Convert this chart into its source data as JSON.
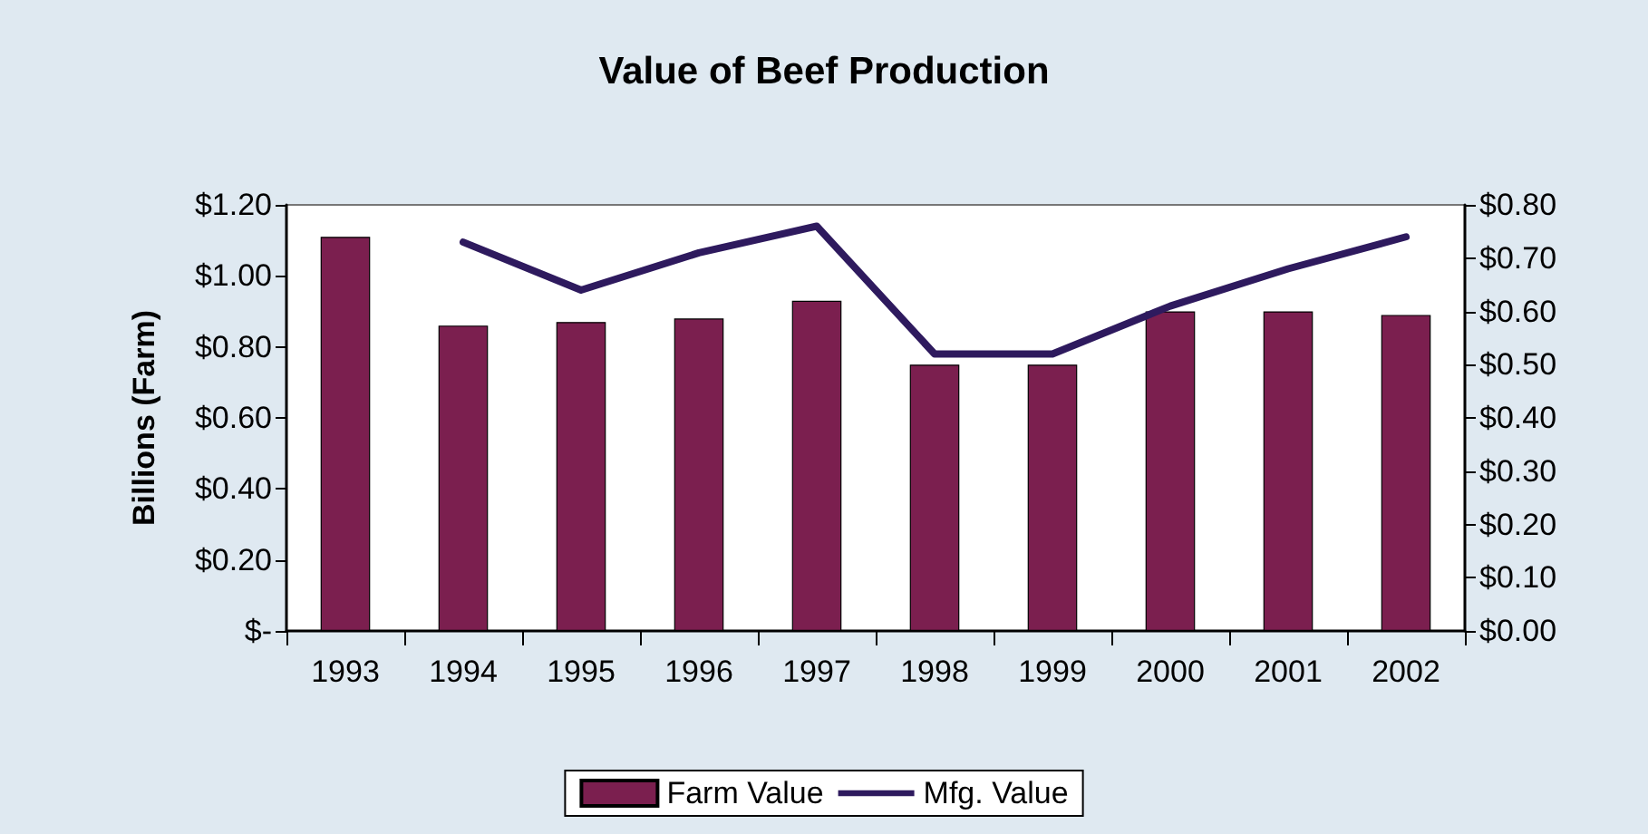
{
  "chart_data": {
    "type": "bar",
    "title": "Value of Beef Production",
    "ylabel": "Billions (Farm)",
    "categories": [
      "1993",
      "1994",
      "1995",
      "1996",
      "1997",
      "1998",
      "1999",
      "2000",
      "2001",
      "2002"
    ],
    "series": [
      {
        "name": "Farm Value",
        "color": "#7b1f4f",
        "values": [
          1.11,
          0.86,
          0.87,
          0.88,
          0.93,
          0.75,
          0.75,
          0.9,
          0.9,
          0.89
        ]
      },
      {
        "name": "Mfg. Value",
        "type": "line",
        "axis": "y2",
        "color": "#2e1a5e",
        "marker": "none",
        "line_style": "solid",
        "values": [
          null,
          0.73,
          0.64,
          0.71,
          0.76,
          0.52,
          0.52,
          0.61,
          0.68,
          0.74
        ]
      }
    ],
    "ylim": [
      0,
      1.2
    ],
    "yticks": [
      {
        "value": 0,
        "label": "$-"
      },
      {
        "value": 0.2,
        "label": "$0.20"
      },
      {
        "value": 0.4,
        "label": "$0.40"
      },
      {
        "value": 0.6,
        "label": "$0.60"
      },
      {
        "value": 0.8,
        "label": "$0.80"
      },
      {
        "value": 1.0,
        "label": "$1.00"
      },
      {
        "value": 1.2,
        "label": "$1.20"
      }
    ],
    "y2lim": [
      0,
      0.8
    ],
    "y2ticks": [
      {
        "value": 0,
        "label": "$0.00"
      },
      {
        "value": 0.1,
        "label": "$0.10"
      },
      {
        "value": 0.2,
        "label": "$0.20"
      },
      {
        "value": 0.3,
        "label": "$0.30"
      },
      {
        "value": 0.4,
        "label": "$0.40"
      },
      {
        "value": 0.5,
        "label": "$0.50"
      },
      {
        "value": 0.6,
        "label": "$0.60"
      },
      {
        "value": 0.7,
        "label": "$0.70"
      },
      {
        "value": 0.8,
        "label": "$0.80"
      }
    ],
    "grid": false,
    "legend": "bottom"
  }
}
